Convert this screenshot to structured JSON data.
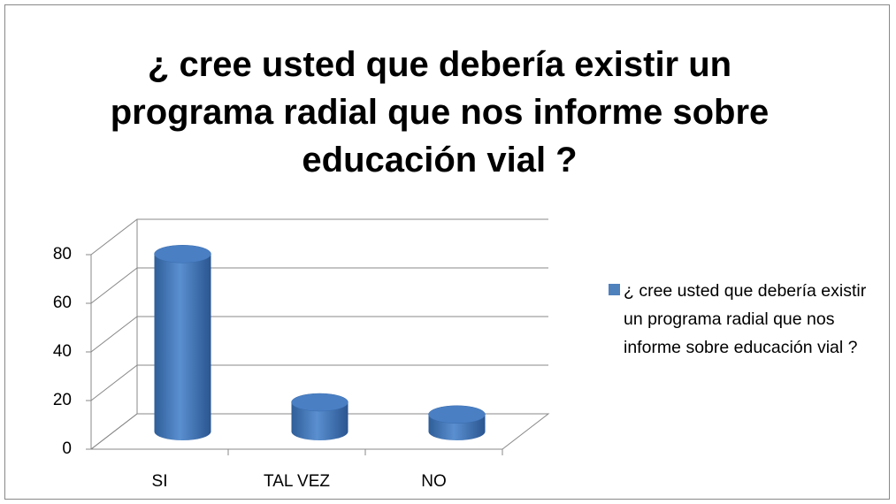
{
  "chart_data": {
    "type": "bar3d",
    "title": "¿ cree usted que debería existir un programa radial que nos informe sobre educación vial ?",
    "categories": [
      "SI",
      "TAL VEZ",
      "NO"
    ],
    "series": [
      {
        "name": "¿ cree usted que debería existir un programa radial que nos informe sobre educación vial ?",
        "color": "#4f81bd",
        "values": [
          73,
          12,
          7
        ]
      }
    ],
    "ylim": [
      0,
      80
    ],
    "yticks": [
      0,
      20,
      40,
      60,
      80
    ],
    "grid": true,
    "legend": "right"
  }
}
